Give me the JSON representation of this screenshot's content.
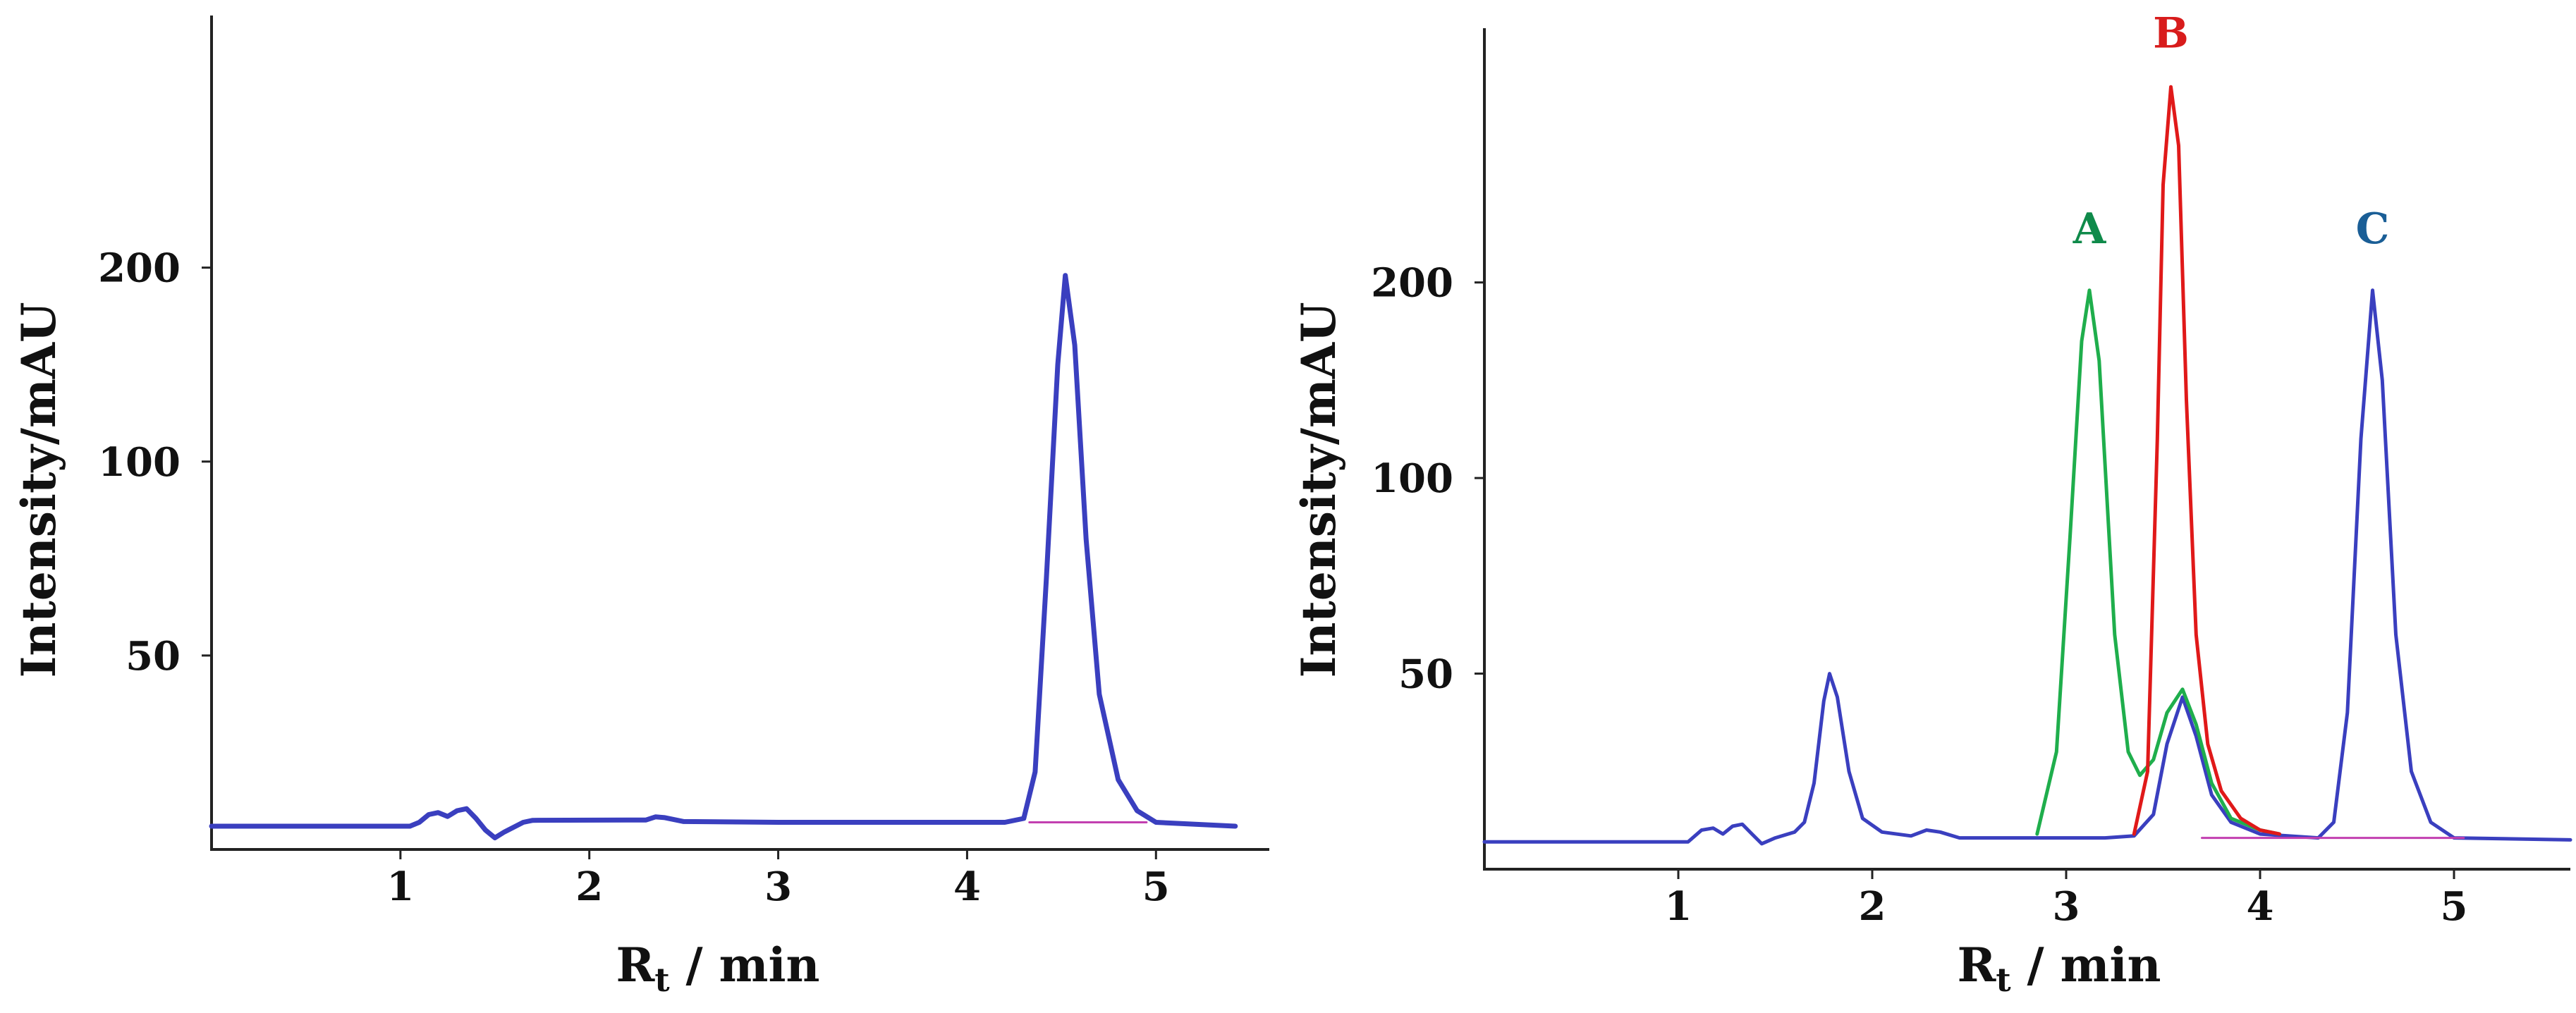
{
  "colors": {
    "blue": "#3a3fbf",
    "green": "#1fae4c",
    "red": "#e01919",
    "magenta": "#c23fb0",
    "label_A": "#0f8a4a",
    "label_B": "#d81c1c",
    "label_C": "#1a5e96"
  },
  "chart_data": [
    {
      "type": "line",
      "title": "",
      "xlabel_main": "R",
      "xlabel_sub": "t",
      "xlabel_unit": " / min",
      "ylabel": "Intensity/mAU",
      "xlim": [
        0,
        5.6
      ],
      "ylim": [
        0,
        215
      ],
      "x_ticks": [
        1,
        2,
        3,
        4,
        5
      ],
      "y_ticks": [
        50,
        100,
        200
      ],
      "y_tick_positions": [
        50,
        100,
        150
      ],
      "grid": false,
      "series": [
        {
          "color": "blue",
          "points": [
            [
              0,
              6
            ],
            [
              1.05,
              6
            ],
            [
              1.1,
              7
            ],
            [
              1.15,
              9
            ],
            [
              1.2,
              9.5
            ],
            [
              1.25,
              8.5
            ],
            [
              1.3,
              10
            ],
            [
              1.35,
              10.5
            ],
            [
              1.4,
              8
            ],
            [
              1.45,
              5
            ],
            [
              1.5,
              3
            ],
            [
              1.55,
              4.5
            ],
            [
              1.65,
              7
            ],
            [
              1.7,
              7.5
            ],
            [
              2.3,
              7.6
            ],
            [
              2.35,
              8.4
            ],
            [
              2.4,
              8.2
            ],
            [
              2.5,
              7.2
            ],
            [
              3.0,
              7
            ],
            [
              4.2,
              7
            ],
            [
              4.3,
              8
            ],
            [
              4.36,
              20
            ],
            [
              4.42,
              70
            ],
            [
              4.48,
              125
            ],
            [
              4.52,
              148
            ],
            [
              4.57,
              130
            ],
            [
              4.63,
              80
            ],
            [
              4.7,
              40
            ],
            [
              4.8,
              18
            ],
            [
              4.9,
              10
            ],
            [
              5.0,
              7
            ],
            [
              5.42,
              6
            ]
          ]
        },
        {
          "color": "magenta",
          "points": [
            [
              4.33,
              7
            ],
            [
              4.95,
              7
            ]
          ]
        }
      ],
      "annotations": []
    },
    {
      "type": "line",
      "title": "",
      "xlabel_main": "R",
      "xlabel_sub": "t",
      "xlabel_unit": " / min",
      "ylabel": "Intensity/mAU",
      "xlim": [
        0,
        5.6
      ],
      "ylim": [
        0,
        215
      ],
      "x_ticks": [
        1,
        2,
        3,
        4,
        5
      ],
      "y_ticks": [
        50,
        100,
        200
      ],
      "y_tick_positions": [
        50,
        100,
        150
      ],
      "grid": false,
      "series": [
        {
          "color": "blue",
          "points": [
            [
              0,
              7
            ],
            [
              1.05,
              7
            ],
            [
              1.12,
              10
            ],
            [
              1.18,
              10.5
            ],
            [
              1.23,
              9
            ],
            [
              1.28,
              11
            ],
            [
              1.33,
              11.5
            ],
            [
              1.38,
              9
            ],
            [
              1.43,
              6.5
            ],
            [
              1.5,
              8
            ],
            [
              1.6,
              9.5
            ],
            [
              1.65,
              12
            ],
            [
              1.7,
              22
            ],
            [
              1.75,
              43
            ],
            [
              1.78,
              50
            ],
            [
              1.82,
              44
            ],
            [
              1.88,
              25
            ],
            [
              1.95,
              13
            ],
            [
              2.05,
              9.5
            ],
            [
              2.2,
              8.5
            ],
            [
              2.28,
              10
            ],
            [
              2.35,
              9.5
            ],
            [
              2.45,
              8
            ],
            [
              3.2,
              8
            ],
            [
              3.35,
              8.5
            ],
            [
              3.45,
              14
            ],
            [
              3.52,
              32
            ],
            [
              3.6,
              44
            ],
            [
              3.67,
              34
            ],
            [
              3.75,
              19
            ],
            [
              3.85,
              12
            ],
            [
              4.0,
              9
            ],
            [
              4.3,
              8
            ],
            [
              4.38,
              12
            ],
            [
              4.45,
              40
            ],
            [
              4.52,
              110
            ],
            [
              4.58,
              148
            ],
            [
              4.63,
              125
            ],
            [
              4.7,
              60
            ],
            [
              4.78,
              25
            ],
            [
              4.88,
              12
            ],
            [
              5.0,
              8
            ],
            [
              5.6,
              7.5
            ]
          ]
        },
        {
          "color": "green",
          "points": [
            [
              2.85,
              9
            ],
            [
              2.95,
              30
            ],
            [
              3.02,
              85
            ],
            [
              3.08,
              135
            ],
            [
              3.12,
              148
            ],
            [
              3.17,
              130
            ],
            [
              3.25,
              60
            ],
            [
              3.32,
              30
            ],
            [
              3.38,
              24
            ],
            [
              3.45,
              28
            ],
            [
              3.52,
              40
            ],
            [
              3.6,
              46
            ],
            [
              3.67,
              37
            ],
            [
              3.75,
              22
            ],
            [
              3.85,
              13
            ],
            [
              4.0,
              10
            ],
            [
              4.1,
              9
            ]
          ]
        },
        {
          "color": "red",
          "points": [
            [
              3.35,
              9
            ],
            [
              3.42,
              25
            ],
            [
              3.47,
              110
            ],
            [
              3.5,
              175
            ],
            [
              3.54,
              200
            ],
            [
              3.58,
              185
            ],
            [
              3.62,
              120
            ],
            [
              3.67,
              60
            ],
            [
              3.73,
              32
            ],
            [
              3.8,
              20
            ],
            [
              3.9,
              13
            ],
            [
              4.0,
              10
            ],
            [
              4.1,
              9
            ]
          ]
        },
        {
          "color": "magenta",
          "points": [
            [
              3.7,
              8
            ],
            [
              5.05,
              8
            ]
          ]
        }
      ],
      "annotations": [
        {
          "text": "A",
          "x": 3.12,
          "y": 160,
          "color": "label_A"
        },
        {
          "text": "B",
          "x": 3.54,
          "y": 210,
          "color": "label_B"
        },
        {
          "text": "C",
          "x": 4.58,
          "y": 160,
          "color": "label_C"
        }
      ]
    }
  ]
}
